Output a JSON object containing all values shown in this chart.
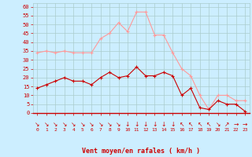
{
  "x": [
    0,
    1,
    2,
    3,
    4,
    5,
    6,
    7,
    8,
    9,
    10,
    11,
    12,
    13,
    14,
    15,
    16,
    17,
    18,
    19,
    20,
    21,
    22,
    23
  ],
  "wind_avg": [
    14,
    16,
    18,
    20,
    18,
    18,
    16,
    20,
    23,
    20,
    21,
    26,
    21,
    21,
    23,
    21,
    10,
    14,
    3,
    2,
    7,
    5,
    5,
    1
  ],
  "wind_gust": [
    34,
    35,
    34,
    35,
    34,
    34,
    34,
    42,
    45,
    51,
    46,
    57,
    57,
    44,
    44,
    34,
    25,
    21,
    10,
    2,
    10,
    10,
    7,
    7
  ],
  "bg_color": "#cceeff",
  "grid_color": "#aacccc",
  "avg_color": "#cc0000",
  "gust_color": "#ff9999",
  "xlabel": "Vent moyen/en rafales ( km/h )",
  "xlabel_color": "#cc0000",
  "tick_color": "#cc0000",
  "ylim": [
    0,
    62
  ],
  "yticks": [
    0,
    5,
    10,
    15,
    20,
    25,
    30,
    35,
    40,
    45,
    50,
    55,
    60
  ],
  "xlim": [
    -0.5,
    23.5
  ],
  "arrow_symbols": [
    "↘",
    "↘",
    "↘",
    "↘",
    "↘",
    "↘",
    "↘",
    "↘",
    "↘",
    "↘",
    "↓",
    "↓",
    "↓",
    "↓",
    "↓",
    "↓",
    "↖",
    "↖",
    "↖",
    "↖",
    "↘",
    "↗",
    "→",
    "→"
  ]
}
